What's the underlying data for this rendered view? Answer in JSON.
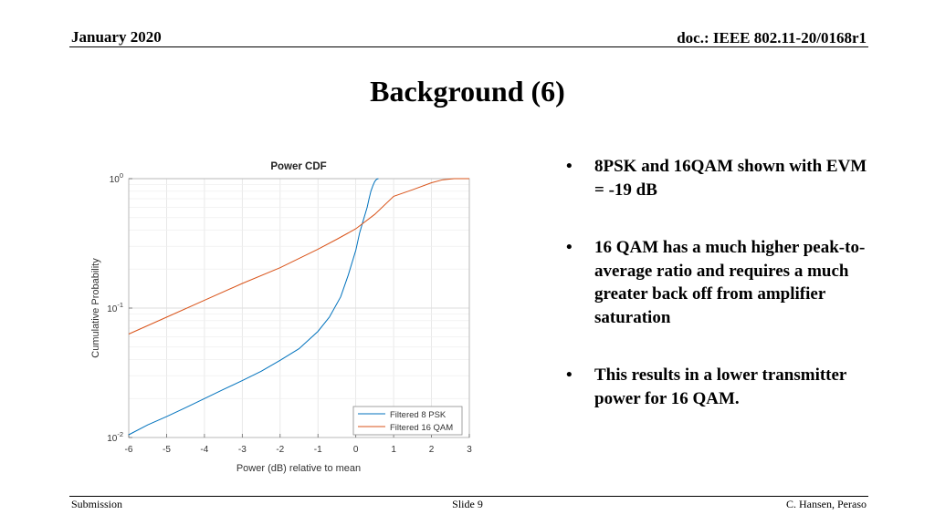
{
  "header": {
    "date": "January 2020",
    "doc": "doc.: IEEE 802.11-20/0168r1"
  },
  "slide": {
    "title": "Background (6)"
  },
  "bullets": [
    "8PSK and 16QAM shown with EVM = -19 dB",
    "16 QAM has a much higher peak-to-average ratio and requires a much greater back off from amplifier saturation",
    "This results in a lower transmitter power for 16 QAM."
  ],
  "bullet_symbol": "•",
  "footer": {
    "left": "Submission",
    "center": "Slide 9",
    "right": "C. Hansen, Peraso"
  },
  "colors": {
    "series_8psk": "#0072BD",
    "series_16qam": "#D95319"
  },
  "chart_data": {
    "type": "line",
    "title": "Power CDF",
    "xlabel": "Power (dB) relative to mean",
    "ylabel": "Cumulative Probability",
    "xlim": [
      -6,
      3
    ],
    "ylim": [
      0.01,
      1
    ],
    "yscale": "log",
    "xticks": [
      "-6",
      "-5",
      "-4",
      "-3",
      "-2",
      "-1",
      "0",
      "1",
      "2",
      "3"
    ],
    "yticks": [
      {
        "value": 0.01,
        "base": "10",
        "exp": "-2"
      },
      {
        "value": 0.1,
        "base": "10",
        "exp": "-1"
      },
      {
        "value": 1,
        "base": "10",
        "exp": "0"
      }
    ],
    "grid": true,
    "legend_position": "bottom-right",
    "series": [
      {
        "name": "Filtered 8 PSK",
        "x": [
          -6.0,
          -5.5,
          -5.0,
          -4.5,
          -4.0,
          -3.5,
          -3.0,
          -2.5,
          -2.0,
          -1.5,
          -1.0,
          -0.7,
          -0.4,
          -0.2,
          0.0,
          0.1,
          0.2,
          0.3,
          0.35,
          0.4,
          0.45,
          0.5,
          0.55,
          0.6
        ],
        "y": [
          0.0105,
          0.0125,
          0.0145,
          0.017,
          0.02,
          0.0235,
          0.0275,
          0.0325,
          0.0395,
          0.0485,
          0.066,
          0.085,
          0.122,
          0.18,
          0.28,
          0.38,
          0.48,
          0.6,
          0.7,
          0.8,
          0.88,
          0.95,
          0.99,
          1.0
        ]
      },
      {
        "name": "Filtered 16 QAM",
        "x": [
          -6.0,
          -5.0,
          -4.0,
          -3.0,
          -2.0,
          -1.0,
          -0.5,
          0.0,
          0.5,
          1.0,
          1.5,
          2.0,
          2.3,
          2.6,
          3.0
        ],
        "y": [
          0.063,
          0.085,
          0.115,
          0.155,
          0.205,
          0.285,
          0.34,
          0.41,
          0.53,
          0.73,
          0.82,
          0.93,
          0.98,
          1.0,
          1.0
        ]
      }
    ]
  }
}
